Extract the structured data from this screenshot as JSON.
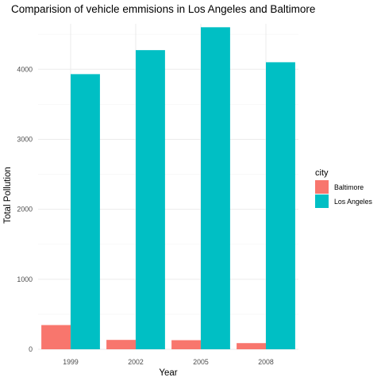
{
  "chart_data": {
    "type": "bar",
    "title": "Comparision of vehicle emmisions in Los Angeles and Baltimore",
    "xlabel": "Year",
    "ylabel": "Total Pollution",
    "categories": [
      "1999",
      "2002",
      "2005",
      "2008"
    ],
    "series": [
      {
        "name": "Baltimore",
        "color": "#F8766D",
        "values": [
          346,
          134,
          130,
          88
        ]
      },
      {
        "name": "Los Angeles",
        "color": "#00BFC4",
        "values": [
          3931,
          4274,
          4601,
          4101
        ]
      }
    ],
    "ylim": [
      0,
      4650
    ],
    "y_ticks": [
      0,
      1000,
      2000,
      3000,
      4000
    ],
    "legend": {
      "title": "city",
      "placement": "right"
    },
    "grid": true
  }
}
